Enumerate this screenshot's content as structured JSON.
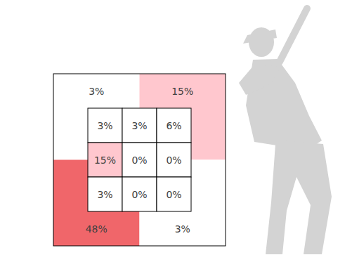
{
  "chart_data": {
    "type": "heatmap",
    "zone": {
      "values": [
        [
          3,
          3,
          6
        ],
        [
          15,
          0,
          0
        ],
        [
          3,
          0,
          0
        ]
      ],
      "value_labels": [
        [
          "3%",
          "3%",
          "6%"
        ],
        [
          "15%",
          "0%",
          "0%"
        ],
        [
          "3%",
          "0%",
          "0%"
        ]
      ],
      "colors": [
        [
          "#ffffff",
          "#ffffff",
          "#ffffff"
        ],
        [
          "#ffc7ce",
          "#ffffff",
          "#ffffff"
        ],
        [
          "#ffffff",
          "#ffffff",
          "#ffffff"
        ]
      ]
    },
    "outer": {
      "values": [
        3,
        15,
        48,
        3
      ],
      "value_labels": [
        "3%",
        "15%",
        "48%",
        "3%"
      ],
      "colors": [
        "#ffffff",
        "#ffc7ce",
        "#f0666a",
        "#ffffff"
      ]
    },
    "data_labels": true
  }
}
